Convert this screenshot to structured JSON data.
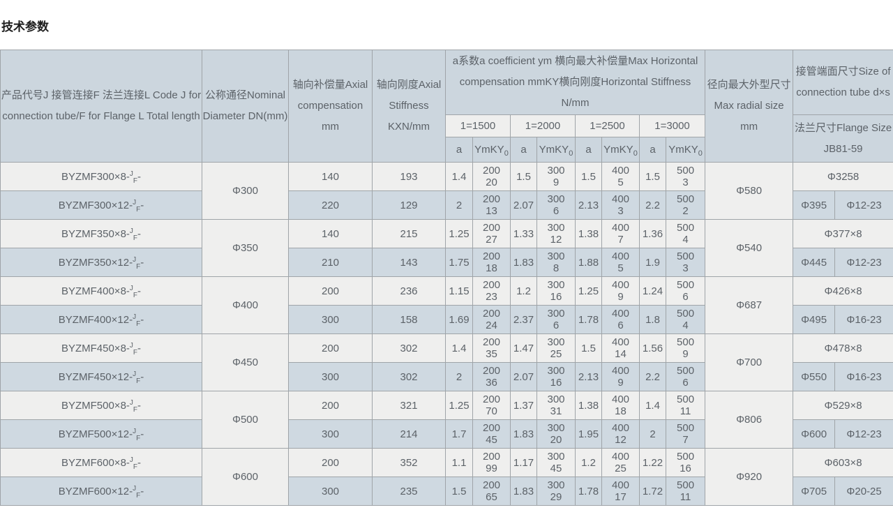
{
  "page_title": "技术参数",
  "colors": {
    "header_bg": "#ccd6de",
    "row_light_bg": "#efefee",
    "row_alt_bg": "#cfd9e1",
    "border": "#9fa4a8",
    "header_text": "#4e5d6a",
    "cell_text": "#5c6268",
    "title_text": "#1e1e1e"
  },
  "table": {
    "headers": {
      "product": "产品代号J 接管连接F 法兰连接L Code J for connection tube/F for Flange L Total length",
      "dn": "公称通径Nominal Diameter DN(mm)",
      "axial_compensation": "轴向补偿量Axial compensation mm",
      "axial_stiffness": "轴向刚度Axial Stiffness KXN/mm",
      "group_title": "a系数a coefficient ym 横向最大补偿量Max Horizontal compensation mmKY横向刚度Horizontal Stiffness N/mm",
      "group_cols": [
        "1=1500",
        "1=2000",
        "1=2500",
        "1=3000"
      ],
      "sub_a": "a",
      "sub_ym": "YmKY",
      "sub_ym0": "0",
      "radial": "径向最大外型尺寸 Max radial size mm",
      "tube": "接管端面尺寸Size of connection tube d×s",
      "flange": "法兰尺寸Flange Size JB81-59"
    },
    "groups": [
      {
        "dn": "Φ300",
        "radial": "Φ580",
        "tube": "Φ3258",
        "flange_d": "Φ395",
        "flange_holes": "Φ12-23",
        "rows": [
          {
            "code_pre": "BYZMF300×8-",
            "code_sup": "J",
            "code_sub": "F",
            "code_post": "-",
            "comp": "140",
            "stiff": "193",
            "pairs": [
              {
                "a": "1.4",
                "ym": "200",
                "ky": "20"
              },
              {
                "a": "1.5",
                "ym": "300",
                "ky": "9"
              },
              {
                "a": "1.5",
                "ym": "400",
                "ky": "5"
              },
              {
                "a": "1.5",
                "ym": "500",
                "ky": "3"
              }
            ]
          },
          {
            "code_pre": "BYZMF300×12-",
            "code_sup": "J",
            "code_sub": "F",
            "code_post": "-",
            "comp": "220",
            "stiff": "129",
            "pairs": [
              {
                "a": "2",
                "ym": "200",
                "ky": "13"
              },
              {
                "a": "2.07",
                "ym": "300",
                "ky": "6"
              },
              {
                "a": "2.13",
                "ym": "400",
                "ky": "3"
              },
              {
                "a": "2.2",
                "ym": "500",
                "ky": "2"
              }
            ]
          }
        ]
      },
      {
        "dn": "Φ350",
        "radial": "Φ540",
        "tube": "Φ377×8",
        "flange_d": "Φ445",
        "flange_holes": "Φ12-23",
        "rows": [
          {
            "code_pre": "BYZMF350×8-",
            "code_sup": "J",
            "code_sub": "F",
            "code_post": "-",
            "comp": "140",
            "stiff": "215",
            "pairs": [
              {
                "a": "1.25",
                "ym": "200",
                "ky": "27"
              },
              {
                "a": "1.33",
                "ym": "300",
                "ky": "12"
              },
              {
                "a": "1.38",
                "ym": "400",
                "ky": "7"
              },
              {
                "a": "1.36",
                "ym": "500",
                "ky": "4"
              }
            ]
          },
          {
            "code_pre": "BYZMF350×12-",
            "code_sup": "J",
            "code_sub": "F",
            "code_post": "-",
            "comp": "210",
            "stiff": "143",
            "pairs": [
              {
                "a": "1.75",
                "ym": "200",
                "ky": "18"
              },
              {
                "a": "1.83",
                "ym": "300",
                "ky": "8"
              },
              {
                "a": "1.88",
                "ym": "400",
                "ky": "5"
              },
              {
                "a": "1.9",
                "ym": "500",
                "ky": "3"
              }
            ]
          }
        ]
      },
      {
        "dn": "Φ400",
        "radial": "Φ687",
        "tube": "Φ426×8",
        "flange_d": "Φ495",
        "flange_holes": "Φ16-23",
        "rows": [
          {
            "code_pre": "BYZMF400×8-",
            "code_sup": "J",
            "code_sub": "F",
            "code_post": "-",
            "comp": "200",
            "stiff": "236",
            "pairs": [
              {
                "a": "1.15",
                "ym": "200",
                "ky": "23"
              },
              {
                "a": "1.2",
                "ym": "300",
                "ky": "16"
              },
              {
                "a": "1.25",
                "ym": "400",
                "ky": "9"
              },
              {
                "a": "1.24",
                "ym": "500",
                "ky": "6"
              }
            ]
          },
          {
            "code_pre": "BYZMF400×12-",
            "code_sup": "J",
            "code_sub": "F",
            "code_post": "-",
            "comp": "300",
            "stiff": "158",
            "pairs": [
              {
                "a": "1.69",
                "ym": "200",
                "ky": "24"
              },
              {
                "a": "2.37",
                "ym": "300",
                "ky": "6"
              },
              {
                "a": "1.78",
                "ym": "400",
                "ky": "6"
              },
              {
                "a": "1.8",
                "ym": "500",
                "ky": "4"
              }
            ]
          }
        ]
      },
      {
        "dn": "Φ450",
        "radial": "Φ700",
        "tube": "Φ478×8",
        "flange_d": "Φ550",
        "flange_holes": "Φ16-23",
        "rows": [
          {
            "code_pre": "BYZMF450×8-",
            "code_sup": "J",
            "code_sub": "F",
            "code_post": "-",
            "comp": "200",
            "stiff": "302",
            "pairs": [
              {
                "a": "1.4",
                "ym": "200",
                "ky": "35"
              },
              {
                "a": "1.47",
                "ym": "300",
                "ky": "25"
              },
              {
                "a": "1.5",
                "ym": "400",
                "ky": "14"
              },
              {
                "a": "1.56",
                "ym": "500",
                "ky": "9"
              }
            ]
          },
          {
            "code_pre": "BYZMF450×12-",
            "code_sup": "J",
            "code_sub": "F",
            "code_post": "-",
            "comp": "300",
            "stiff": "302",
            "pairs": [
              {
                "a": "2",
                "ym": "200",
                "ky": "36"
              },
              {
                "a": "2.07",
                "ym": "300",
                "ky": "16"
              },
              {
                "a": "2.13",
                "ym": "400",
                "ky": "9"
              },
              {
                "a": "2.2",
                "ym": "500",
                "ky": "6"
              }
            ]
          }
        ]
      },
      {
        "dn": "Φ500",
        "radial": "Φ806",
        "tube": "Φ529×8",
        "flange_d": "Φ600",
        "flange_holes": "Φ12-23",
        "rows": [
          {
            "code_pre": "BYZMF500×8-",
            "code_sup": "J",
            "code_sub": "F",
            "code_post": "-",
            "comp": "200",
            "stiff": "321",
            "pairs": [
              {
                "a": "1.25",
                "ym": "200",
                "ky": "70"
              },
              {
                "a": "1.37",
                "ym": "300",
                "ky": "31"
              },
              {
                "a": "1.38",
                "ym": "400",
                "ky": "18"
              },
              {
                "a": "1.4",
                "ym": "500",
                "ky": "11"
              }
            ]
          },
          {
            "code_pre": "BYZMF500×12-",
            "code_sup": "J",
            "code_sub": "F",
            "code_post": "-",
            "comp": "300",
            "stiff": "214",
            "pairs": [
              {
                "a": "1.7",
                "ym": "200",
                "ky": "45"
              },
              {
                "a": "1.83",
                "ym": "300",
                "ky": "20"
              },
              {
                "a": "1.95",
                "ym": "400",
                "ky": "12"
              },
              {
                "a": "2",
                "ym": "500",
                "ky": "7"
              }
            ]
          }
        ]
      },
      {
        "dn": "Φ600",
        "radial": "Φ920",
        "tube": "Φ603×8",
        "flange_d": "Φ705",
        "flange_holes": "Φ20-25",
        "rows": [
          {
            "code_pre": "BYZMF600×8-",
            "code_sup": "J",
            "code_sub": "F",
            "code_post": "-",
            "comp": "200",
            "stiff": "352",
            "pairs": [
              {
                "a": "1.1",
                "ym": "200",
                "ky": "99"
              },
              {
                "a": "1.17",
                "ym": "300",
                "ky": "45"
              },
              {
                "a": "1.2",
                "ym": "400",
                "ky": "25"
              },
              {
                "a": "1.22",
                "ym": "500",
                "ky": "16"
              }
            ]
          },
          {
            "code_pre": "BYZMF600×12-",
            "code_sup": "J",
            "code_sub": "F",
            "code_post": "-",
            "comp": "300",
            "stiff": "235",
            "pairs": [
              {
                "a": "1.5",
                "ym": "200",
                "ky": "65"
              },
              {
                "a": "1.83",
                "ym": "300",
                "ky": "29"
              },
              {
                "a": "1.78",
                "ym": "400",
                "ky": "17"
              },
              {
                "a": "1.72",
                "ym": "500",
                "ky": "11"
              }
            ]
          }
        ]
      }
    ]
  }
}
